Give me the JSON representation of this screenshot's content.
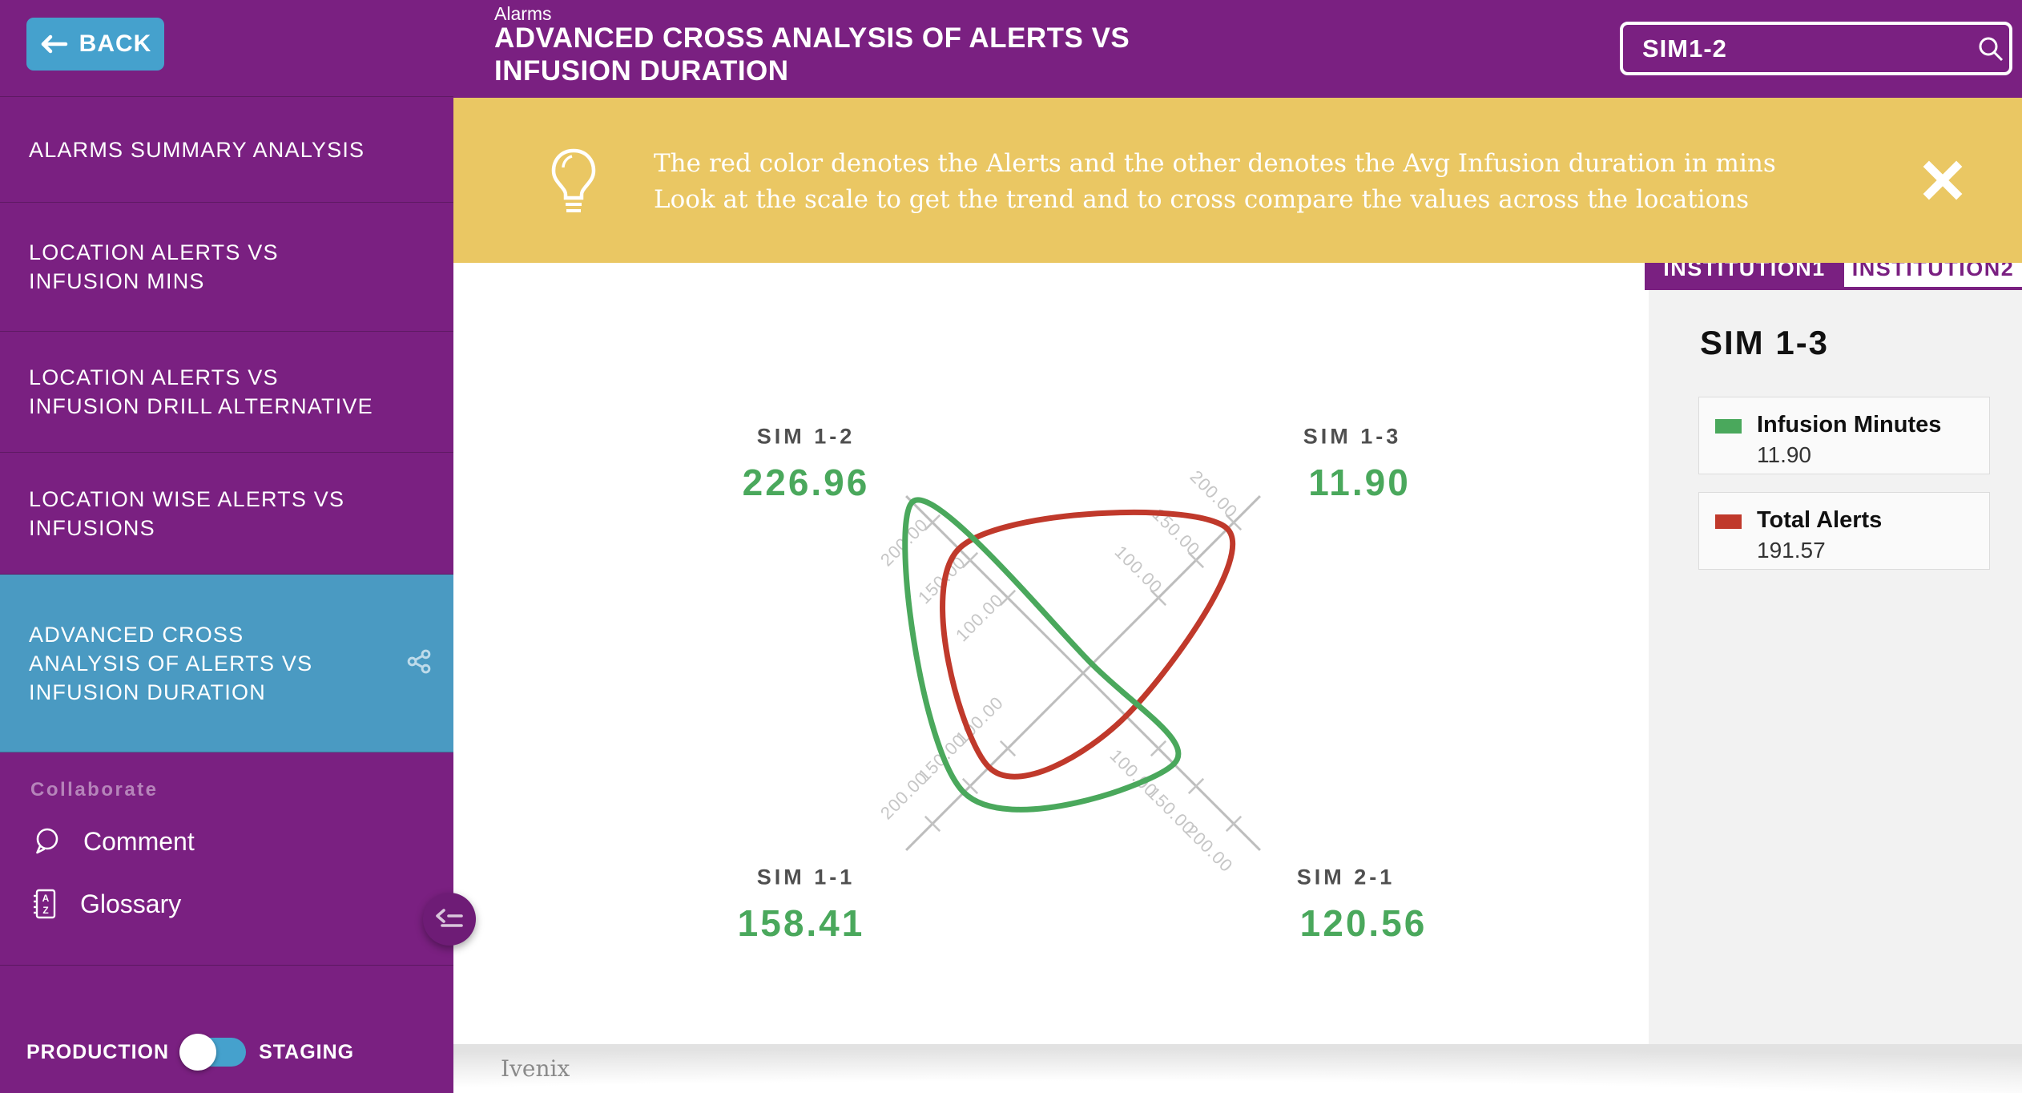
{
  "app": {
    "accent_purple": "#7a2081",
    "accent_blue": "#45a1cd",
    "active_item_blue": "#4a9ac2",
    "banner_yellow": "#eac763",
    "series_green": "#4aa85c",
    "series_red": "#c0392b"
  },
  "sidebar": {
    "back_label": "BACK",
    "items": [
      {
        "label": "ALARMS SUMMARY ANALYSIS",
        "active": false
      },
      {
        "label": "LOCATION ALERTS VS\nINFUSION MINS",
        "active": false
      },
      {
        "label": "LOCATION ALERTS VS\nINFUSION DRILL ALTERNATIVE",
        "active": false
      },
      {
        "label": "LOCATION WISE ALERTS VS\nINFUSIONS",
        "active": false
      },
      {
        "label": "ADVANCED CROSS\nANALYSIS OF ALERTS VS\nINFUSION DURATION",
        "active": true
      }
    ],
    "collaborate_label": "Collaborate",
    "comment_label": "Comment",
    "glossary_label": "Glossary",
    "environment_toggle": {
      "left_label": "PRODUCTION",
      "right_label": "STAGING",
      "state": "production"
    }
  },
  "header": {
    "breadcrumb": "Alarms",
    "title": "ADVANCED CROSS ANALYSIS OF ALERTS VS\nINFUSION DURATION",
    "search_value": "SIM1-2"
  },
  "banner": {
    "text": "The red color denotes the Alerts and the other denotes the Avg Infusion duration in mins\nLook at the scale to get the trend and to cross compare the values across the locations"
  },
  "tabs": [
    {
      "label": "INSTITUTION1",
      "active": true
    },
    {
      "label": "INSTITUTION2",
      "active": false
    }
  ],
  "panel": {
    "title": "SIM 1-3",
    "legend": [
      {
        "name": "Infusion Minutes",
        "value": "11.90",
        "color": "#4aa85c"
      },
      {
        "name": "Total Alerts",
        "value": "191.57",
        "color": "#c0392b"
      }
    ]
  },
  "footer": {
    "brand": "Ivenix"
  },
  "icons": {
    "back": "arrow-left",
    "search": "magnifier",
    "banner": "lightbulb",
    "close": "x",
    "share": "share-nodes",
    "comment": "speech-bubble",
    "glossary": "az-notebook",
    "collapse": "collapse-menu"
  },
  "chart_data": {
    "type": "radar",
    "axes": [
      "SIM 1-2",
      "SIM 1-3",
      "SIM 2-1",
      "SIM 1-1"
    ],
    "axis_positions": [
      "nw",
      "ne",
      "se",
      "sw"
    ],
    "axis_max": 235,
    "ticks": [
      100,
      150,
      200
    ],
    "tick_label_style": "two-decimals, rotated 45deg, gray",
    "series": [
      {
        "name": "Infusion Minutes",
        "color": "#4aa85c",
        "values": [
          226.96,
          11.9,
          120.56,
          158.41
        ]
      },
      {
        "name": "Total Alerts",
        "color": "#c0392b",
        "values": [
          165,
          191.57,
          57,
          125
        ]
      }
    ],
    "corner_labels": [
      {
        "axis": "SIM 1-2",
        "value": "226.96",
        "position": "nw"
      },
      {
        "axis": "SIM 1-3",
        "value": "11.90",
        "position": "ne"
      },
      {
        "axis": "SIM 1-1",
        "value": "158.41",
        "position": "sw"
      },
      {
        "axis": "SIM 2-1",
        "value": "120.56",
        "position": "se"
      }
    ]
  }
}
